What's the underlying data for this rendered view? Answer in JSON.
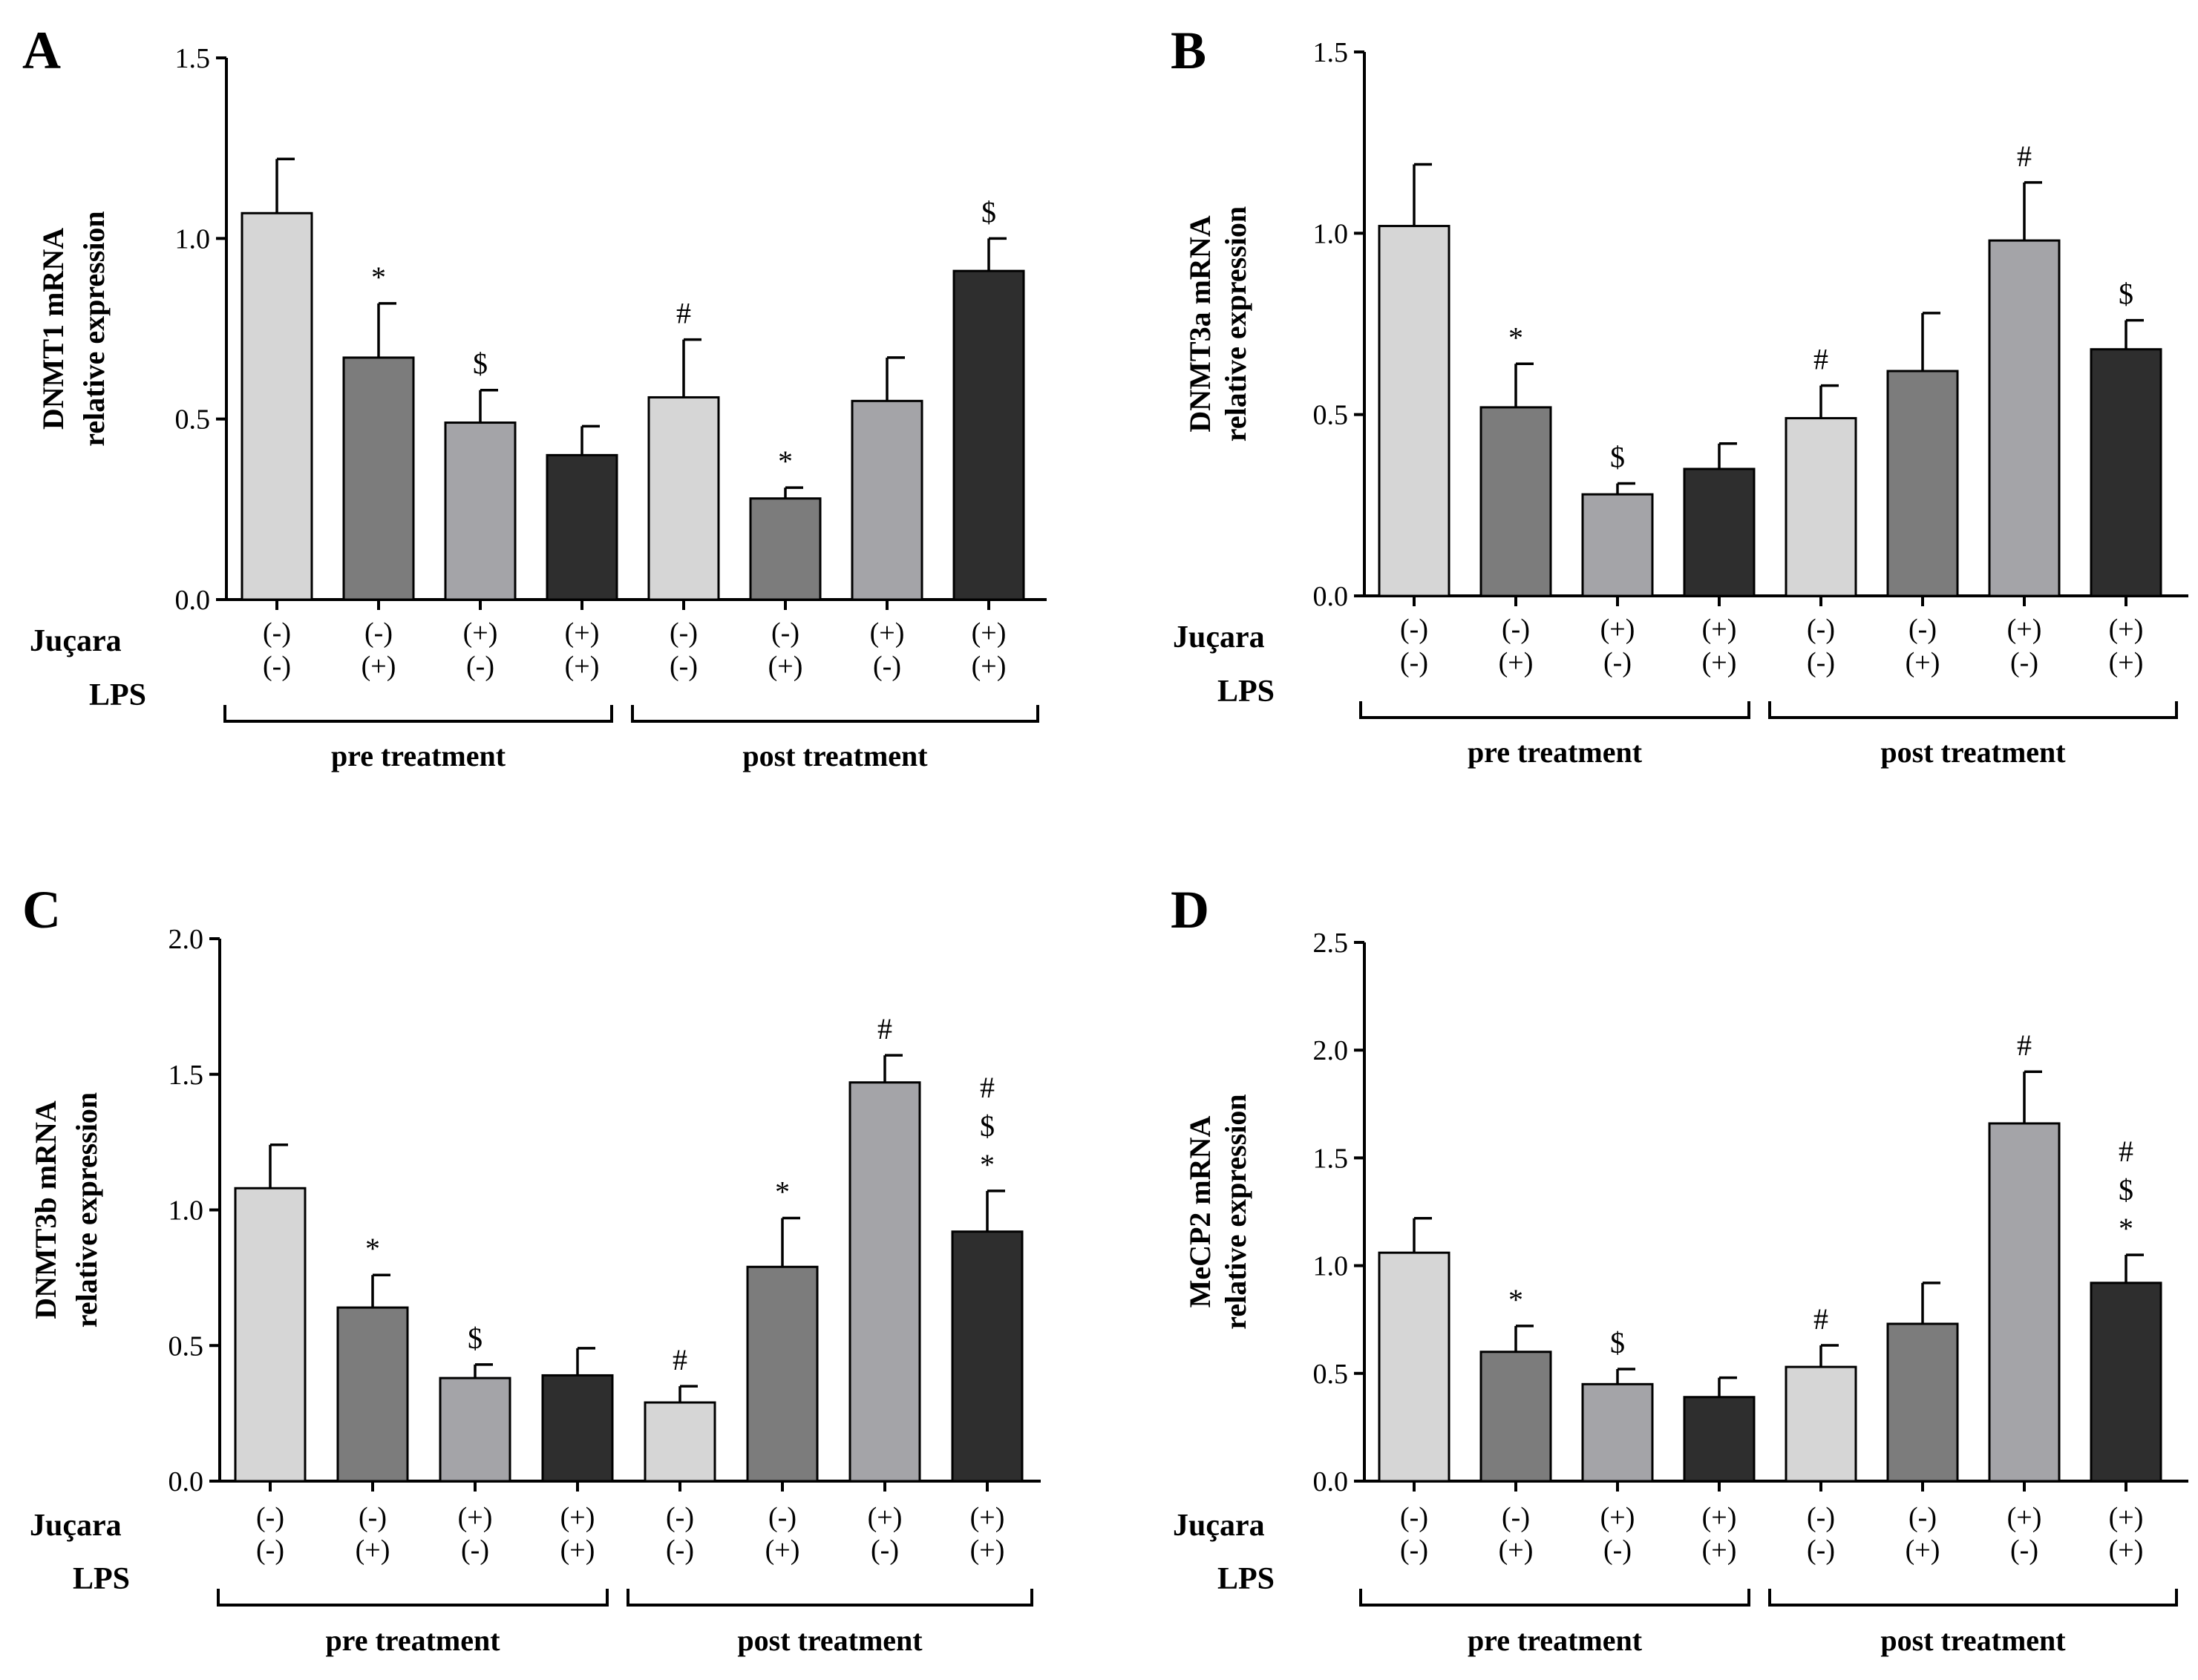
{
  "row_labels": {
    "jucara": "Juçara",
    "lps": "LPS"
  },
  "chart_data": [
    {
      "type": "bar",
      "panel": "A",
      "ylabel": "DNMT1 mRNA",
      "ylabel_sub": "relative expression",
      "ylim": [
        0,
        1.5
      ],
      "yticks": [
        "0.0",
        "0.5",
        "1.0",
        "1.5"
      ],
      "jucara": [
        "(-)",
        "(-)",
        "(+)",
        "(+)",
        "(-)",
        "(-)",
        "(+)",
        "(+)"
      ],
      "lps": [
        "(-)",
        "(+)",
        "(-)",
        "(+)",
        "(-)",
        "(+)",
        "(-)",
        "(+)"
      ],
      "groups": [
        "pre treatment",
        "post treatment"
      ],
      "values": [
        1.07,
        0.67,
        0.49,
        0.4,
        0.56,
        0.28,
        0.55,
        0.91
      ],
      "errors": [
        0.15,
        0.15,
        0.09,
        0.08,
        0.16,
        0.03,
        0.12,
        0.09
      ],
      "annotations": [
        "",
        "*",
        "$",
        "",
        "#",
        "*",
        "",
        "$"
      ],
      "colors": [
        "#d6d6d6",
        "#7c7c7c",
        "#a4a4a8",
        "#2e2e2e",
        "#d6d6d6",
        "#7c7c7c",
        "#a4a4a8",
        "#2e2e2e"
      ]
    },
    {
      "type": "bar",
      "panel": "B",
      "ylabel": "DNMT3a mRNA",
      "ylabel_sub": "relative expression",
      "ylim": [
        0,
        1.5
      ],
      "yticks": [
        "0.0",
        "0.5",
        "1.0",
        "1.5"
      ],
      "jucara": [
        "(-)",
        "(-)",
        "(+)",
        "(+)",
        "(-)",
        "(-)",
        "(+)",
        "(+)"
      ],
      "lps": [
        "(-)",
        "(+)",
        "(-)",
        "(+)",
        "(-)",
        "(+)",
        "(-)",
        "(+)"
      ],
      "groups": [
        "pre treatment",
        "post treatment"
      ],
      "values": [
        1.02,
        0.52,
        0.28,
        0.35,
        0.49,
        0.62,
        0.98,
        0.68
      ],
      "errors": [
        0.17,
        0.12,
        0.03,
        0.07,
        0.09,
        0.16,
        0.16,
        0.08
      ],
      "annotations": [
        "",
        "*",
        "$",
        "",
        "#",
        "",
        "#",
        "$"
      ],
      "colors": [
        "#d6d6d6",
        "#7c7c7c",
        "#a4a4a8",
        "#2e2e2e",
        "#d6d6d6",
        "#7c7c7c",
        "#a4a4a8",
        "#2e2e2e"
      ]
    },
    {
      "type": "bar",
      "panel": "C",
      "ylabel": "DNMT3b mRNA",
      "ylabel_sub": "relative expression",
      "ylim": [
        0,
        2.0
      ],
      "yticks": [
        "0.0",
        "0.5",
        "1.0",
        "1.5",
        "2.0"
      ],
      "jucara": [
        "(-)",
        "(-)",
        "(+)",
        "(+)",
        "(-)",
        "(-)",
        "(+)",
        "(+)"
      ],
      "lps": [
        "(-)",
        "(+)",
        "(-)",
        "(+)",
        "(-)",
        "(+)",
        "(-)",
        "(+)"
      ],
      "groups": [
        "pre treatment",
        "post treatment"
      ],
      "values": [
        1.08,
        0.64,
        0.38,
        0.39,
        0.29,
        0.79,
        1.47,
        0.92
      ],
      "errors": [
        0.16,
        0.12,
        0.05,
        0.1,
        0.06,
        0.18,
        0.1,
        0.15
      ],
      "annotations": [
        "",
        "*",
        "$",
        "",
        "#",
        "*",
        "#",
        "#\n$\n*"
      ],
      "colors": [
        "#d6d6d6",
        "#7c7c7c",
        "#a4a4a8",
        "#2e2e2e",
        "#d6d6d6",
        "#7c7c7c",
        "#a4a4a8",
        "#2e2e2e"
      ]
    },
    {
      "type": "bar",
      "panel": "D",
      "ylabel": "MeCP2 mRNA",
      "ylabel_sub": "relative expression",
      "ylim": [
        0,
        2.5
      ],
      "yticks": [
        "0.0",
        "0.5",
        "1.0",
        "1.5",
        "2.0",
        "2.5"
      ],
      "jucara": [
        "(-)",
        "(-)",
        "(+)",
        "(+)",
        "(-)",
        "(-)",
        "(+)",
        "(+)"
      ],
      "lps": [
        "(-)",
        "(+)",
        "(-)",
        "(+)",
        "(-)",
        "(+)",
        "(-)",
        "(+)"
      ],
      "groups": [
        "pre treatment",
        "post treatment"
      ],
      "values": [
        1.06,
        0.6,
        0.45,
        0.39,
        0.53,
        0.73,
        1.66,
        0.92
      ],
      "errors": [
        0.16,
        0.12,
        0.07,
        0.09,
        0.1,
        0.19,
        0.24,
        0.13
      ],
      "annotations": [
        "",
        "*",
        "$",
        "",
        "#",
        "",
        "#",
        "#\n$\n*"
      ],
      "colors": [
        "#d6d6d6",
        "#7c7c7c",
        "#a4a4a8",
        "#2e2e2e",
        "#d6d6d6",
        "#7c7c7c",
        "#a4a4a8",
        "#2e2e2e"
      ]
    }
  ]
}
